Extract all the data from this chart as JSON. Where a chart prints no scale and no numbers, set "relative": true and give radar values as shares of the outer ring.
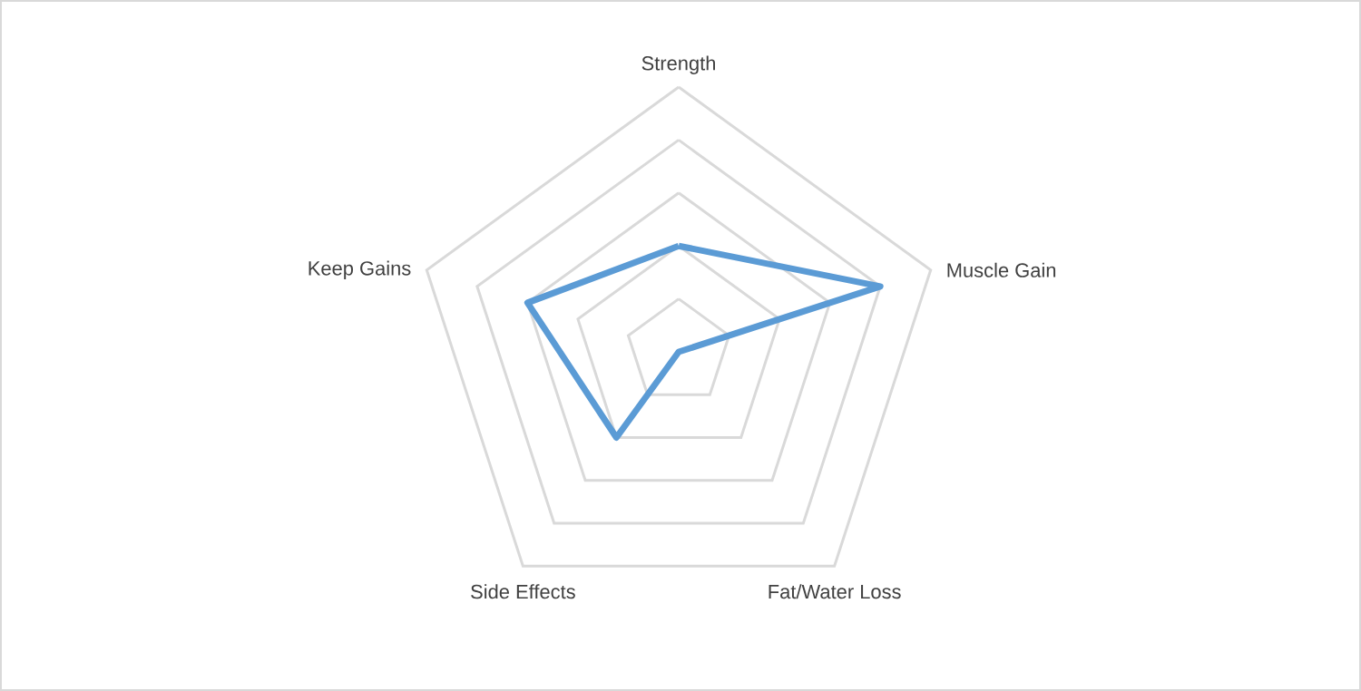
{
  "chart_data": {
    "type": "radar",
    "relative": true,
    "grid": true,
    "categories": [
      "Strength",
      "Muscle Gain",
      "Fat/Water Loss",
      "Side Effects",
      "Keep Gains"
    ],
    "series": [
      {
        "color": "#5b9bd5",
        "values": [
          0.4,
          0.8,
          0.0,
          0.4,
          0.6
        ]
      }
    ]
  }
}
